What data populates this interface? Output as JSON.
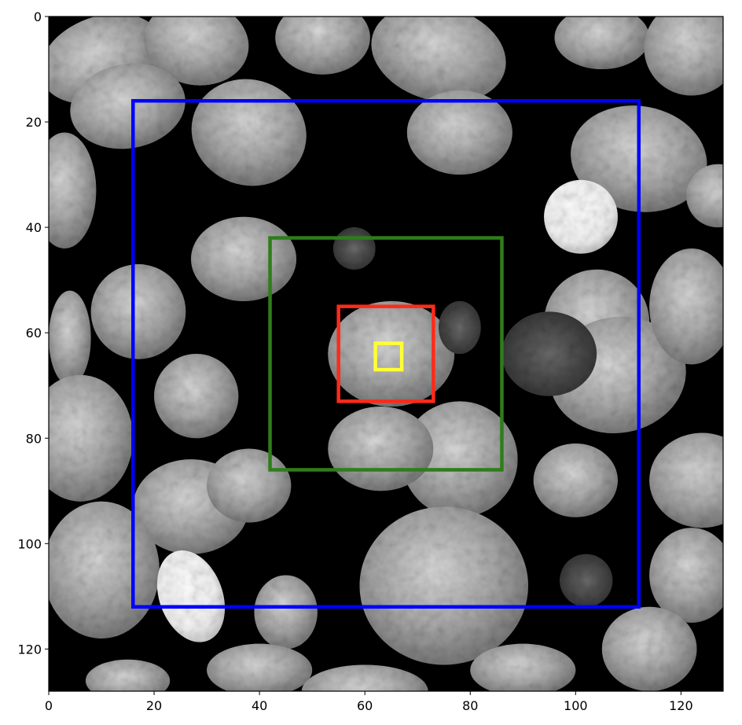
{
  "figure": {
    "type": "image",
    "xlim": [
      0,
      128
    ],
    "ylim": [
      128,
      0
    ],
    "x_ticks": [
      0,
      20,
      40,
      60,
      80,
      100,
      120
    ],
    "y_ticks": [
      0,
      20,
      40,
      60,
      80,
      100,
      120
    ],
    "x_tick_labels": [
      "0",
      "20",
      "40",
      "60",
      "80",
      "100",
      "120"
    ],
    "y_tick_labels": [
      "0",
      "20",
      "40",
      "60",
      "80",
      "100",
      "120"
    ],
    "colormap": "gray",
    "rectangles": [
      {
        "name": "blue-box",
        "color": "#0000ff",
        "x0": 16,
        "y0": 16,
        "x1": 112,
        "y1": 112
      },
      {
        "name": "green-box",
        "color": "#2e7d1a",
        "x0": 42,
        "y0": 42,
        "x1": 86,
        "y1": 86
      },
      {
        "name": "red-box",
        "color": "#ff2a1a",
        "x0": 55,
        "y0": 55,
        "x1": 73,
        "y1": 73
      },
      {
        "name": "yellow-box",
        "color": "#ffff33",
        "x0": 62,
        "y0": 62,
        "x1": 67,
        "y1": 67
      }
    ]
  }
}
